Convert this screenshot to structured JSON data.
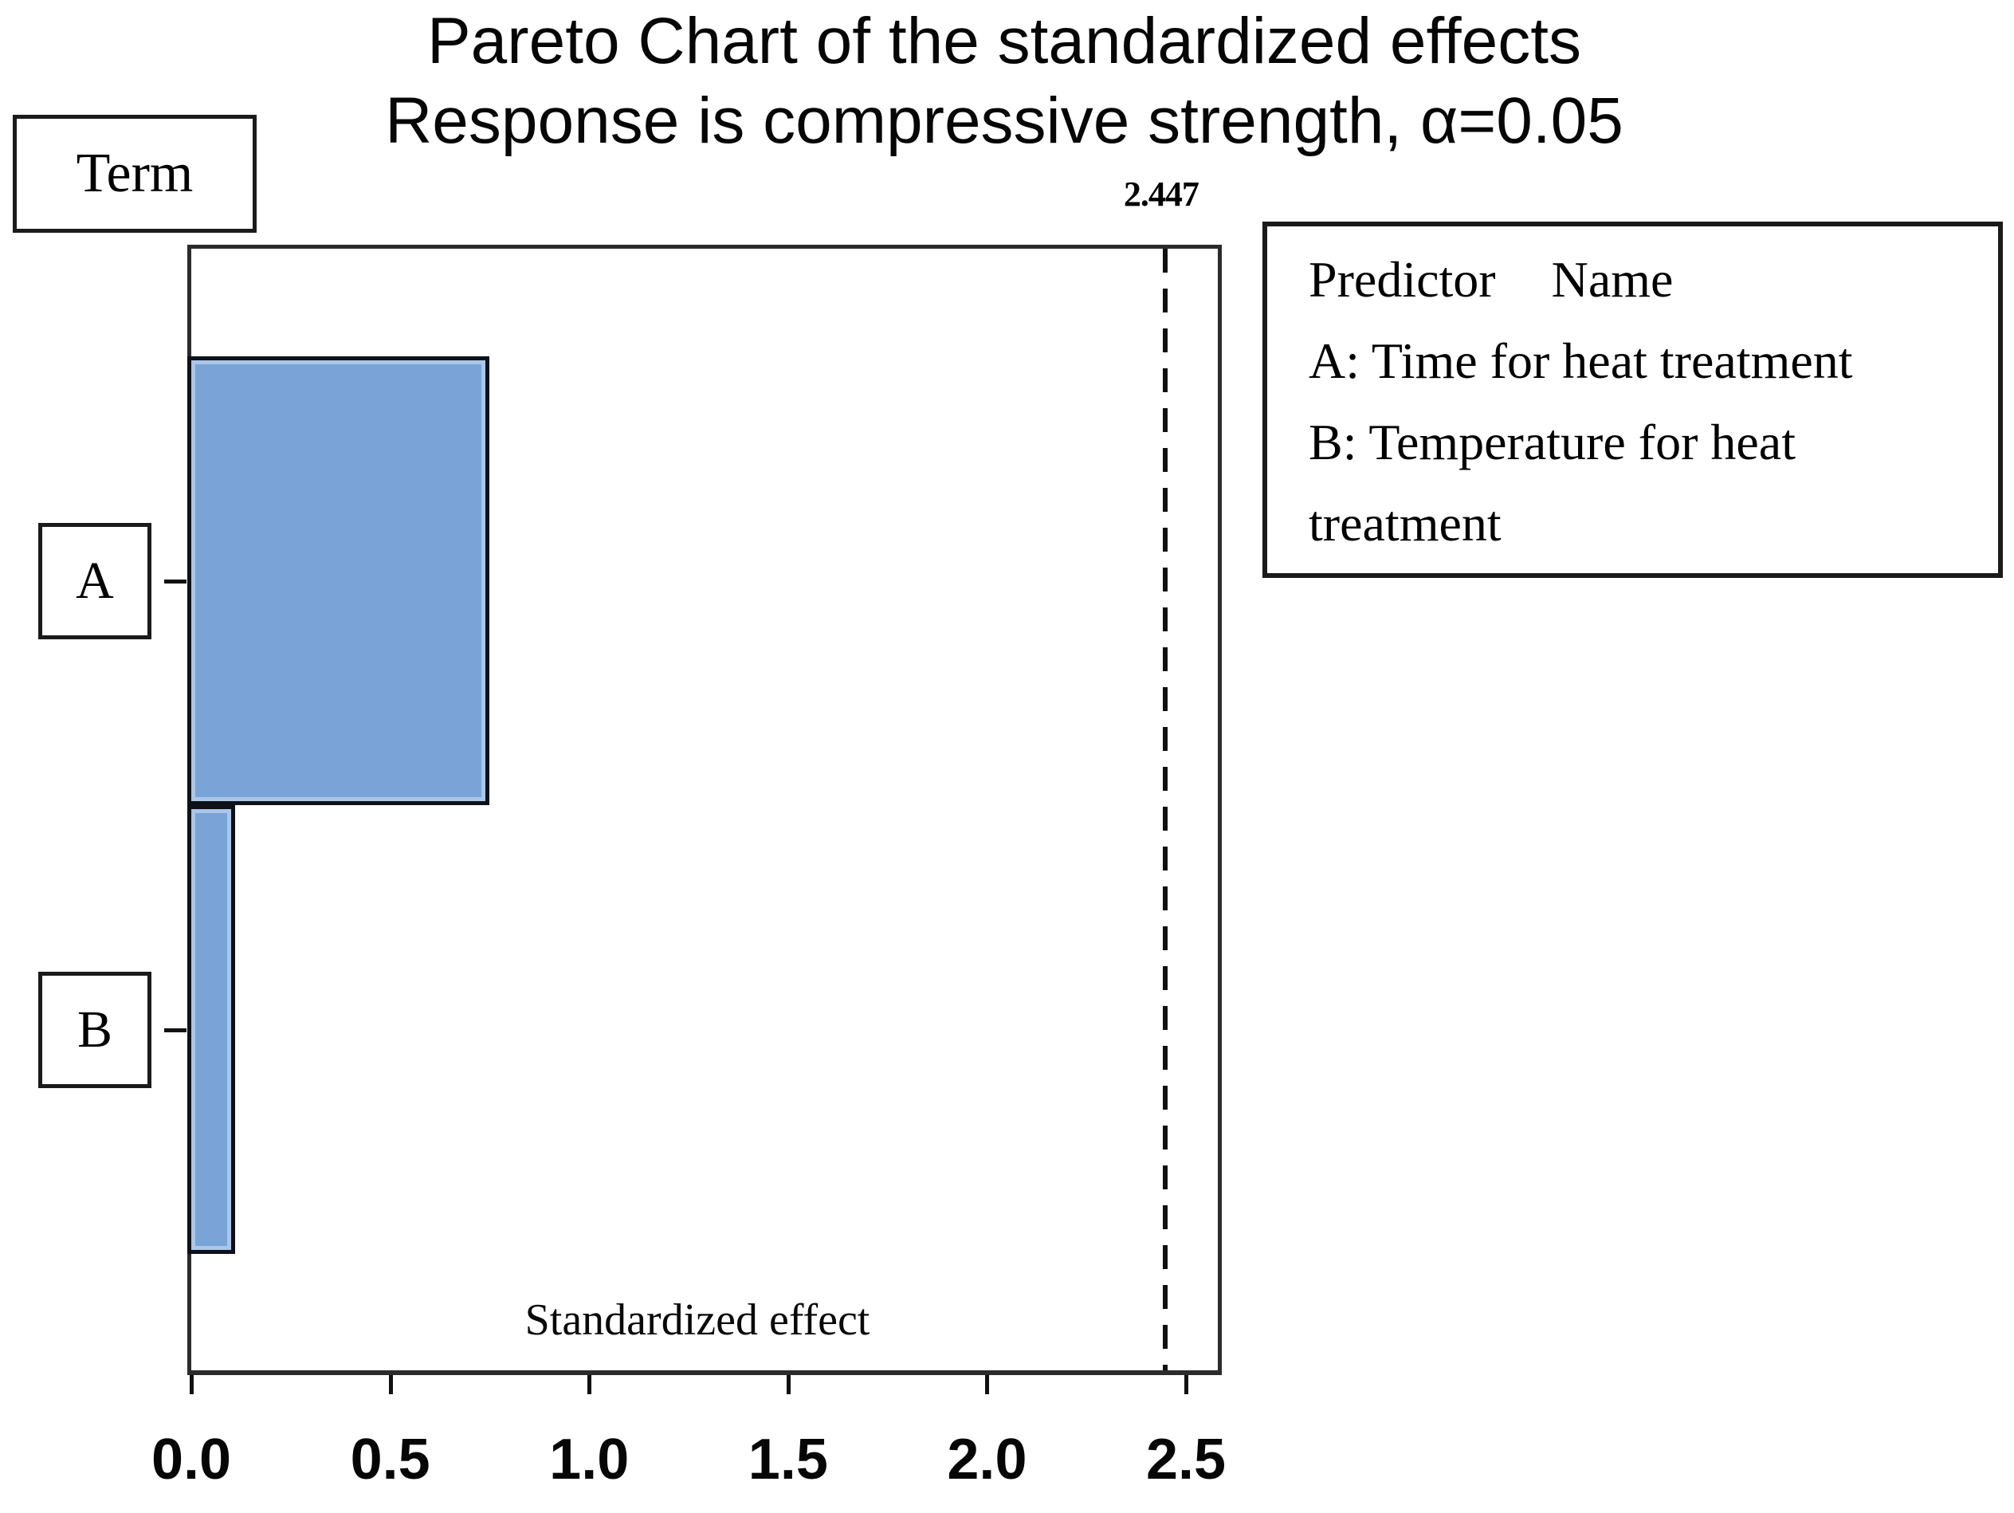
{
  "title": {
    "line1": "Pareto Chart of the standardized effects",
    "line2": "Response is compressive strength, α=0.05"
  },
  "term_box_label": "Term",
  "x_axis_label": "Standardized effect",
  "legend": {
    "header_left": "Predictor",
    "header_right": "Name",
    "display_lines": [
      "A: Time for heat treatment",
      "B: Temperature for heat",
      "treatment"
    ]
  },
  "chart_data": {
    "type": "bar",
    "orientation": "horizontal",
    "title": "Pareto Chart of the standardized effects",
    "subtitle": "Response is compressive strength, α=0.05",
    "xlabel": "Standardized effect",
    "ylabel": "Term",
    "categories": [
      "A",
      "B"
    ],
    "category_names": [
      "Time for heat treatment",
      "Temperature for heat treatment"
    ],
    "values": [
      0.75,
      0.11
    ],
    "xlim": [
      0,
      2.58
    ],
    "x_tick_labels": [
      "0.0",
      "0.5",
      "1.0",
      "1.5",
      "2.0",
      "2.5"
    ],
    "reference_line_value": 2.447,
    "reference_line_label": "2.447",
    "alpha": "0.05",
    "grid": false,
    "legend_position": "right",
    "bar_color": "#7aa4d8"
  },
  "colors": {
    "bar_fill": "#7aa4d8",
    "bar_border": "#0e1118",
    "frame": "#2b2b2b",
    "reference_line": "#101010"
  }
}
